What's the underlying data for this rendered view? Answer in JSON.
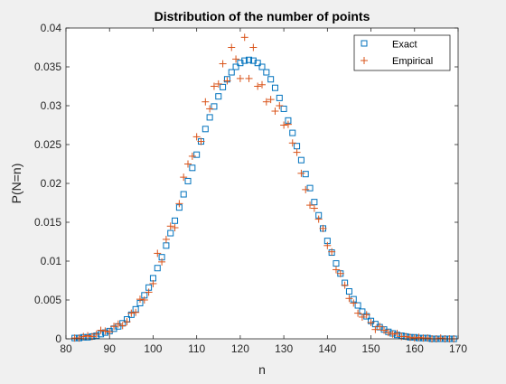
{
  "chart_data": {
    "type": "scatter",
    "title": "Distribution of the number of points",
    "xlabel": "n",
    "ylabel": "P(N=n)",
    "xlim": [
      80,
      170
    ],
    "ylim": [
      0,
      0.04
    ],
    "xticks": [
      80,
      90,
      100,
      110,
      120,
      130,
      140,
      150,
      160,
      170
    ],
    "yticks": [
      0,
      0.005,
      0.01,
      0.015,
      0.02,
      0.025,
      0.03,
      0.035,
      0.04
    ],
    "ytick_labels": [
      "0",
      "0.005",
      "0.01",
      "0.015",
      "0.02",
      "0.025",
      "0.03",
      "0.035",
      "0.04"
    ],
    "grid": false,
    "legend_position": "top-right",
    "series": [
      {
        "name": "Exact",
        "marker": "square",
        "color": "#0072BD",
        "x": [
          82,
          83,
          84,
          85,
          86,
          87,
          88,
          89,
          90,
          91,
          92,
          93,
          94,
          95,
          96,
          97,
          98,
          99,
          100,
          101,
          102,
          103,
          104,
          105,
          106,
          107,
          108,
          109,
          110,
          111,
          112,
          113,
          114,
          115,
          116,
          117,
          118,
          119,
          120,
          121,
          122,
          123,
          124,
          125,
          126,
          127,
          128,
          129,
          130,
          131,
          132,
          133,
          134,
          135,
          136,
          137,
          138,
          139,
          140,
          141,
          142,
          143,
          144,
          145,
          146,
          147,
          148,
          149,
          150,
          151,
          152,
          153,
          154,
          155,
          156,
          157,
          158,
          159,
          160,
          161,
          162,
          163,
          164,
          165,
          166,
          167,
          168,
          169
        ],
        "y": [
          0.0001,
          0.0001,
          0.0002,
          0.0002,
          0.0003,
          0.0004,
          0.0006,
          0.0008,
          0.001,
          0.0013,
          0.0016,
          0.002,
          0.0025,
          0.0031,
          0.0038,
          0.0046,
          0.0056,
          0.0066,
          0.0078,
          0.0091,
          0.0105,
          0.012,
          0.0136,
          0.0152,
          0.0169,
          0.0186,
          0.0203,
          0.022,
          0.0237,
          0.0254,
          0.027,
          0.0285,
          0.0299,
          0.0312,
          0.0324,
          0.0334,
          0.0343,
          0.035,
          0.0355,
          0.0358,
          0.0359,
          0.0358,
          0.0355,
          0.035,
          0.0343,
          0.0334,
          0.0323,
          0.031,
          0.0296,
          0.0281,
          0.0265,
          0.0248,
          0.023,
          0.0212,
          0.0194,
          0.0176,
          0.0159,
          0.0142,
          0.0126,
          0.0111,
          0.0097,
          0.0084,
          0.0072,
          0.0061,
          0.0051,
          0.0043,
          0.0035,
          0.0029,
          0.0023,
          0.0019,
          0.0015,
          0.0012,
          0.0009,
          0.0007,
          0.0005,
          0.0004,
          0.0003,
          0.0002,
          0.0002,
          0.0001,
          0.0001,
          0.0001,
          0.0,
          0.0,
          0.0,
          0.0,
          0.0,
          0.0
        ]
      },
      {
        "name": "Empirical",
        "marker": "plus",
        "color": "#D95319",
        "x": [
          82,
          83,
          84,
          85,
          86,
          87,
          88,
          89,
          90,
          91,
          92,
          93,
          94,
          95,
          96,
          97,
          98,
          99,
          100,
          101,
          102,
          103,
          104,
          105,
          106,
          107,
          108,
          109,
          110,
          111,
          112,
          113,
          114,
          115,
          116,
          117,
          118,
          119,
          120,
          121,
          122,
          123,
          124,
          125,
          126,
          127,
          128,
          129,
          130,
          131,
          132,
          133,
          134,
          135,
          136,
          137,
          138,
          139,
          140,
          141,
          142,
          143,
          144,
          145,
          146,
          147,
          148,
          149,
          150,
          151,
          152,
          153,
          154,
          155,
          156,
          157,
          158,
          159,
          160,
          161,
          162,
          163,
          164,
          165,
          166,
          167,
          168,
          169
        ],
        "y": [
          0.0001,
          0.0001,
          0.0003,
          0.0004,
          0.0003,
          0.0006,
          0.0011,
          0.001,
          0.0009,
          0.0016,
          0.0019,
          0.0017,
          0.0022,
          0.0033,
          0.0034,
          0.0051,
          0.005,
          0.006,
          0.0071,
          0.011,
          0.0099,
          0.0128,
          0.0145,
          0.0143,
          0.0174,
          0.0208,
          0.0225,
          0.0235,
          0.026,
          0.0254,
          0.0305,
          0.0296,
          0.0325,
          0.0328,
          0.0354,
          0.0332,
          0.0375,
          0.036,
          0.0335,
          0.0388,
          0.0335,
          0.0375,
          0.0325,
          0.0327,
          0.0305,
          0.0308,
          0.0293,
          0.03,
          0.0275,
          0.0276,
          0.0252,
          0.024,
          0.0213,
          0.0192,
          0.0172,
          0.0168,
          0.0154,
          0.0142,
          0.012,
          0.0112,
          0.0089,
          0.0084,
          0.0069,
          0.0052,
          0.0046,
          0.0033,
          0.0028,
          0.0031,
          0.0021,
          0.0012,
          0.0016,
          0.0011,
          0.0008,
          0.0006,
          0.0007,
          0.0003,
          0.0003,
          0.0002,
          0.0001,
          0.0002,
          0.0001,
          0.0001,
          0.0,
          0.0,
          0.0001,
          0.0,
          0.0,
          0.0
        ]
      }
    ]
  }
}
